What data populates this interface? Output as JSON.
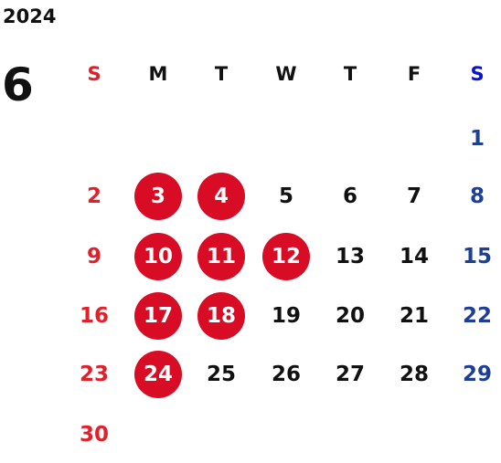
{
  "calendar": {
    "year": "2024",
    "month": "6",
    "weekdays": [
      "S",
      "M",
      "T",
      "W",
      "T",
      "F",
      "S"
    ],
    "weeks": [
      [
        null,
        null,
        null,
        null,
        null,
        null,
        {
          "day": 1
        }
      ],
      [
        {
          "day": 2
        },
        {
          "day": 3,
          "marked": true
        },
        {
          "day": 4,
          "marked": true
        },
        {
          "day": 5
        },
        {
          "day": 6
        },
        {
          "day": 7
        },
        {
          "day": 8
        }
      ],
      [
        {
          "day": 9
        },
        {
          "day": 10,
          "marked": true
        },
        {
          "day": 11,
          "marked": true
        },
        {
          "day": 12,
          "marked": true
        },
        {
          "day": 13
        },
        {
          "day": 14
        },
        {
          "day": 15
        }
      ],
      [
        {
          "day": 16
        },
        {
          "day": 17,
          "marked": true
        },
        {
          "day": 18,
          "marked": true
        },
        {
          "day": 19
        },
        {
          "day": 20
        },
        {
          "day": 21
        },
        {
          "day": 22
        }
      ],
      [
        {
          "day": 23
        },
        {
          "day": 24,
          "marked": true
        },
        {
          "day": 25
        },
        {
          "day": 26
        },
        {
          "day": 27
        },
        {
          "day": 28
        },
        {
          "day": 29
        }
      ],
      [
        {
          "day": 30
        },
        null,
        null,
        null,
        null,
        null,
        null
      ]
    ]
  }
}
